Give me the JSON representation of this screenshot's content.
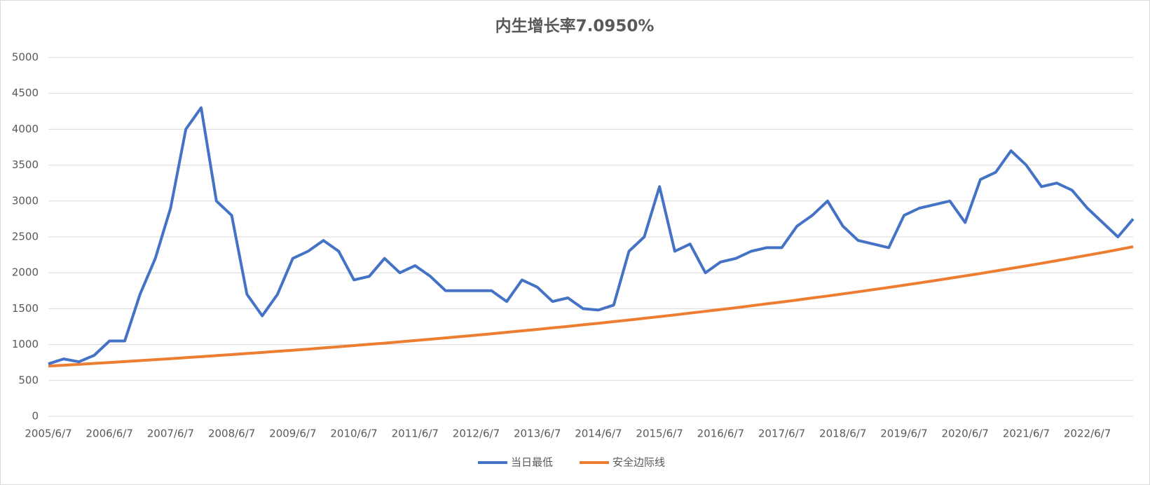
{
  "chart_data": {
    "type": "line",
    "title": "内生增长率7.0950%",
    "categories": [
      "2005/6/7",
      null,
      null,
      null,
      "2006/6/7",
      null,
      null,
      null,
      "2007/6/7",
      null,
      null,
      null,
      "2008/6/7",
      null,
      null,
      null,
      "2009/6/7",
      null,
      null,
      null,
      "2010/6/7",
      null,
      null,
      null,
      "2011/6/7",
      null,
      null,
      null,
      "2012/6/7",
      null,
      null,
      null,
      "2013/6/7",
      null,
      null,
      null,
      "2014/6/7",
      null,
      null,
      null,
      "2015/6/7",
      null,
      null,
      null,
      "2016/6/7",
      null,
      null,
      null,
      "2017/6/7",
      null,
      null,
      null,
      "2018/6/7",
      null,
      null,
      null,
      "2019/6/7",
      null,
      null,
      null,
      "2020/6/7",
      null,
      null,
      null,
      "2021/6/7",
      null,
      null,
      null,
      "2022/6/7",
      null,
      null,
      null
    ],
    "series": [
      {
        "name": "当日最低",
        "color": "#4472c4",
        "values": [
          730,
          800,
          760,
          850,
          1050,
          1050,
          1700,
          2200,
          2900,
          4000,
          4300,
          3000,
          2800,
          1700,
          1400,
          1700,
          2200,
          2300,
          2450,
          2300,
          1900,
          1950,
          2200,
          2000,
          2100,
          1950,
          1750,
          1750,
          1750,
          1750,
          1600,
          1900,
          1800,
          1600,
          1650,
          1500,
          1480,
          1550,
          2300,
          2500,
          3200,
          2300,
          2400,
          2000,
          2150,
          2200,
          2300,
          2350,
          2350,
          2650,
          2800,
          3000,
          2650,
          2450,
          2400,
          2350,
          2800,
          2900,
          2950,
          3000,
          2700,
          3300,
          3400,
          3700,
          3500,
          3200,
          3250,
          3150,
          2900,
          2700,
          2500,
          2750
        ]
      },
      {
        "name": "安全边际线",
        "color": "#ed7d31",
        "values": [
          700,
          712,
          724,
          737,
          750,
          763,
          776,
          790,
          803,
          817,
          831,
          846,
          860,
          875,
          890,
          906,
          921,
          937,
          953,
          970,
          986,
          1003,
          1020,
          1038,
          1056,
          1074,
          1093,
          1112,
          1131,
          1150,
          1171,
          1191,
          1211,
          1232,
          1253,
          1275,
          1297,
          1319,
          1342,
          1366,
          1389,
          1413,
          1438,
          1463,
          1488,
          1513,
          1540,
          1567,
          1593,
          1620,
          1649,
          1677,
          1706,
          1735,
          1766,
          1796,
          1827,
          1858,
          1891,
          1924,
          1957,
          1990,
          2025,
          2061,
          2096,
          2132,
          2169,
          2207,
          2244,
          2282,
          2322,
          2363
        ]
      }
    ],
    "ylim": [
      0,
      5000
    ],
    "yticks": [
      0,
      500,
      1000,
      1500,
      2000,
      2500,
      3000,
      3500,
      4000,
      4500,
      5000
    ],
    "grid": true,
    "legend": "bottom"
  }
}
